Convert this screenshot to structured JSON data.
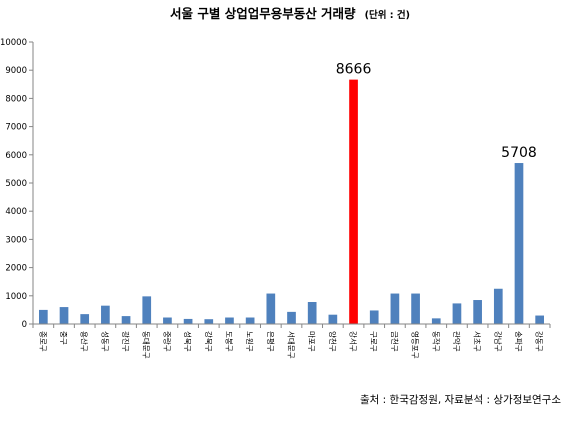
{
  "chart_data": {
    "type": "bar",
    "title": "서울 구별 상업업무용부동산 거래량",
    "title_unit": "(단위 : 건)",
    "xlabel": "",
    "ylabel": "",
    "ylim": [
      0,
      10000
    ],
    "yticks": [
      0,
      1000,
      2000,
      3000,
      4000,
      5000,
      6000,
      7000,
      8000,
      9000,
      10000
    ],
    "grid": "off",
    "categories": [
      "종로구",
      "중구",
      "용산구",
      "성동구",
      "광진구",
      "동대문구",
      "중랑구",
      "성북구",
      "강북구",
      "도봉구",
      "노원구",
      "은평구",
      "서대문구",
      "마포구",
      "양천구",
      "강서구",
      "구로구",
      "금천구",
      "영등포구",
      "동작구",
      "관악구",
      "서초구",
      "강남구",
      "송파구",
      "강동구"
    ],
    "values": [
      500,
      600,
      350,
      650,
      280,
      980,
      230,
      180,
      170,
      230,
      230,
      1080,
      430,
      780,
      330,
      8666,
      480,
      1080,
      1080,
      200,
      730,
      850,
      1250,
      5708,
      300
    ],
    "colors": {
      "default": "#4F81BD",
      "highlight": "#FF0000"
    },
    "highlight_index": 15,
    "data_labels": [
      {
        "index": 15,
        "text": "8666"
      },
      {
        "index": 23,
        "text": "5708"
      }
    ],
    "source": "출처 : 한국감정원, 자료분석 : 상가정보연구소"
  }
}
